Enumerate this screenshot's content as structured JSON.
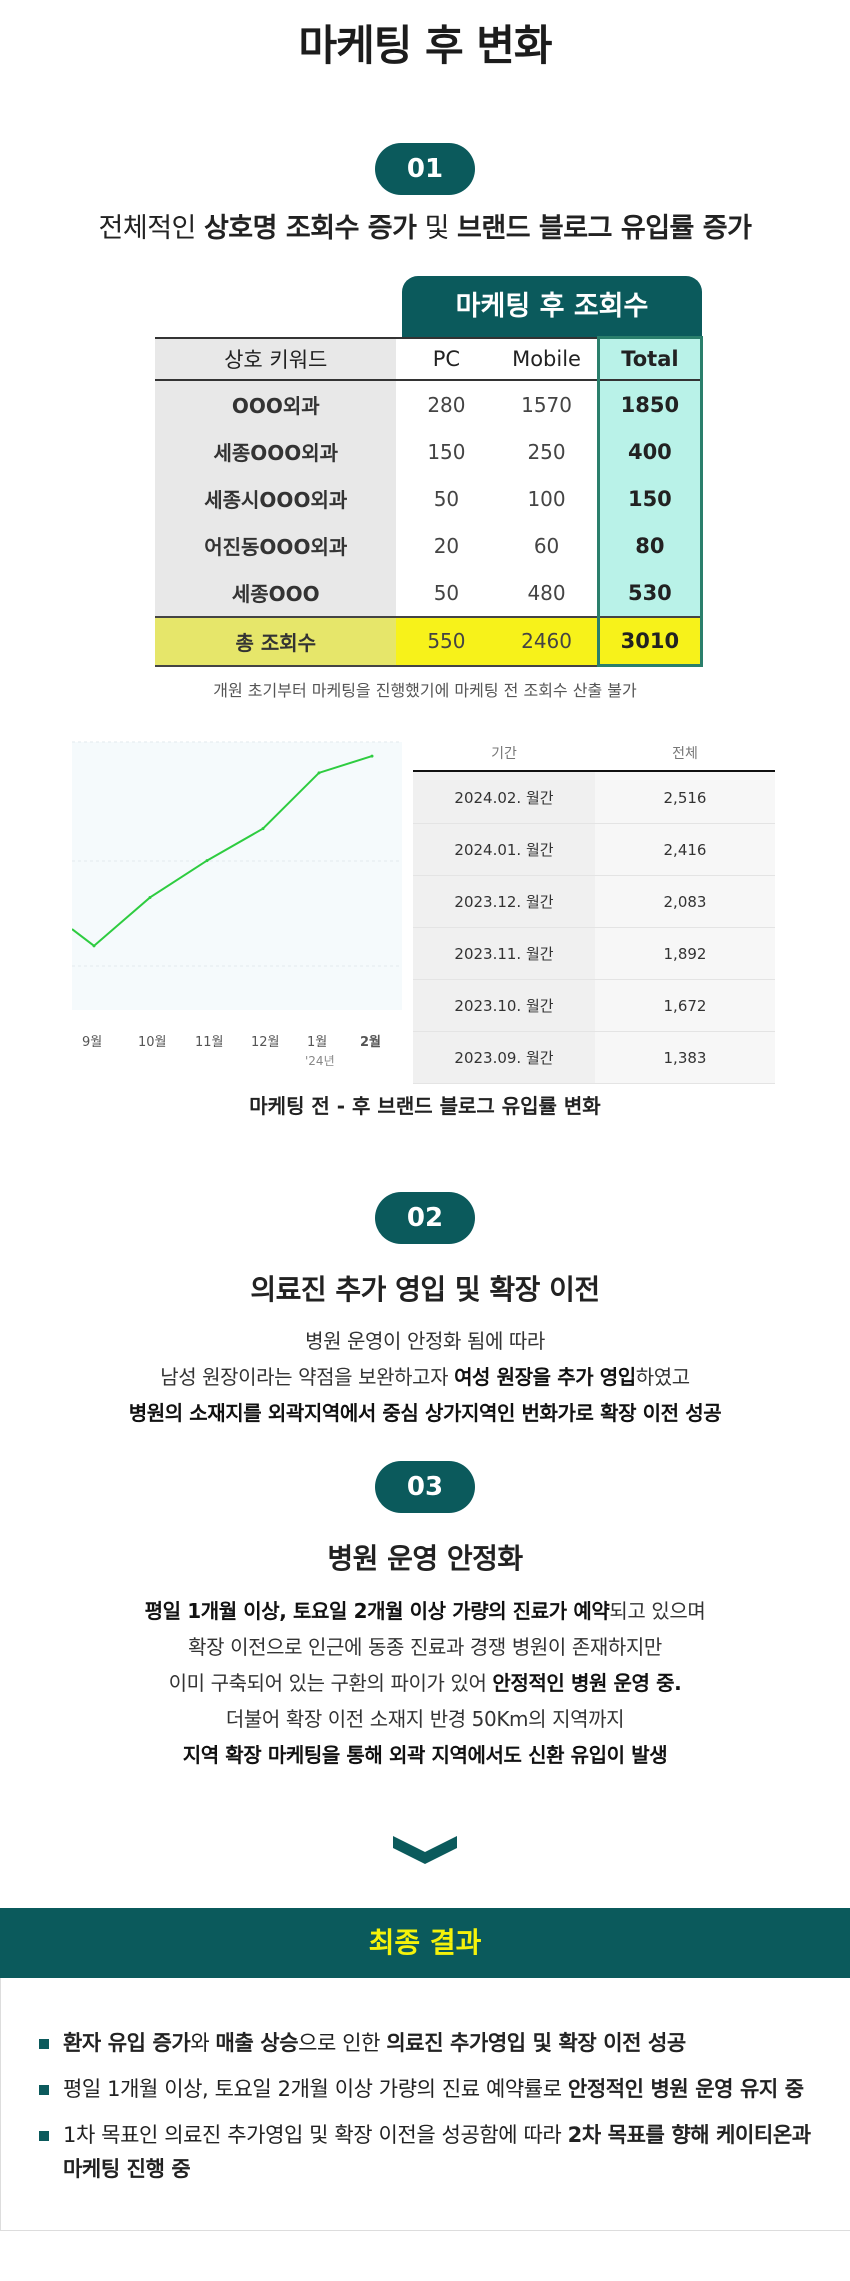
{
  "title": "마케팅 후 변화",
  "section1": {
    "num": "01",
    "headline_pre": "전체적인 ",
    "headline_b1": "상호명 조회수 증가",
    "headline_mid": " 및 ",
    "headline_b2": "브랜드 블로그 유입률 증가"
  },
  "table": {
    "header_tab": "마케팅 후 조회수",
    "columns": [
      "상호 키워드",
      "PC",
      "Mobile",
      "Total"
    ],
    "rows": [
      [
        "OOO외과",
        "280",
        "1570",
        "1850"
      ],
      [
        "세종OOO외과",
        "150",
        "250",
        "400"
      ],
      [
        "세종시OOO외과",
        "50",
        "100",
        "150"
      ],
      [
        "어진동OOO외과",
        "20",
        "60",
        "80"
      ],
      [
        "세종OOO",
        "50",
        "480",
        "530"
      ]
    ],
    "total_row": [
      "총 조회수",
      "550",
      "2460",
      "3010"
    ],
    "note": "개원 초기부터 마케팅을 진행했기에 마케팅 전 조회수 산출 불가"
  },
  "chart_data": {
    "type": "line",
    "categories": [
      "9월",
      "10월",
      "11월",
      "12월",
      "1월",
      "2월"
    ],
    "year_label": "'24년",
    "values": [
      1383,
      1672,
      1892,
      2083,
      2416,
      2516
    ],
    "line_color": "#2ecc40"
  },
  "stats": {
    "columns": [
      "기간",
      "전체"
    ],
    "rows": [
      [
        "2024.02. 월간",
        "2,516"
      ],
      [
        "2024.01. 월간",
        "2,416"
      ],
      [
        "2023.12. 월간",
        "2,083"
      ],
      [
        "2023.11. 월간",
        "1,892"
      ],
      [
        "2023.10. 월간",
        "1,672"
      ],
      [
        "2023.09. 월간",
        "1,383"
      ]
    ],
    "caption": "마케팅 전 - 후 브랜드 블로그 유입률 변화"
  },
  "section2": {
    "num": "02",
    "heading": "의료진 추가 영입 및 확장 이전",
    "line1": "병원 운영이 안정화 됨에 따라",
    "line2_pre": "남성 원장이라는 약점을 보완하고자 ",
    "line2_b": "여성 원장을 추가 영입",
    "line2_post": "하였고",
    "line3": "병원의 소재지를 외곽지역에서 중심 상가지역인 번화가로 확장 이전 성공"
  },
  "section3": {
    "num": "03",
    "heading": "병원 운영 안정화",
    "line1_b": "평일 1개월 이상, 토요일 2개월 이상 가량의 진료가 예약",
    "line1_post": "되고 있으며",
    "line2": "확장 이전으로 인근에 동종 진료과 경쟁 병원이 존재하지만",
    "line3_pre": "이미 구축되어 있는 구환의 파이가 있어 ",
    "line3_b": "안정적인 병원 운영 중.",
    "line4": "더불어 확장 이전 소재지 반경 50Km의 지역까지",
    "line5": "지역 확장 마케팅을 통해 외곽 지역에서도 신환 유입이 발생"
  },
  "result": {
    "band_title": "최종 결과",
    "b1_b1": "환자 유입 증가",
    "b1_t1": "와 ",
    "b1_b2": "매출 상승",
    "b1_t2": "으로 인한 ",
    "b1_b3": "의료진 추가영입 및 확장 이전 성공",
    "b2_t1": "평일 1개월 이상, 토요일 2개월 이상 가량의 진료 예약률로 ",
    "b2_b1": "안정적인 병원 운영 유지 중",
    "b3_t1": "1차 목표인 의료진 추가영입 및 확장 이전을 성공함에 따라 ",
    "b3_b1": "2차 목표를 향해 케이티온과 마케팅 진행 중"
  }
}
